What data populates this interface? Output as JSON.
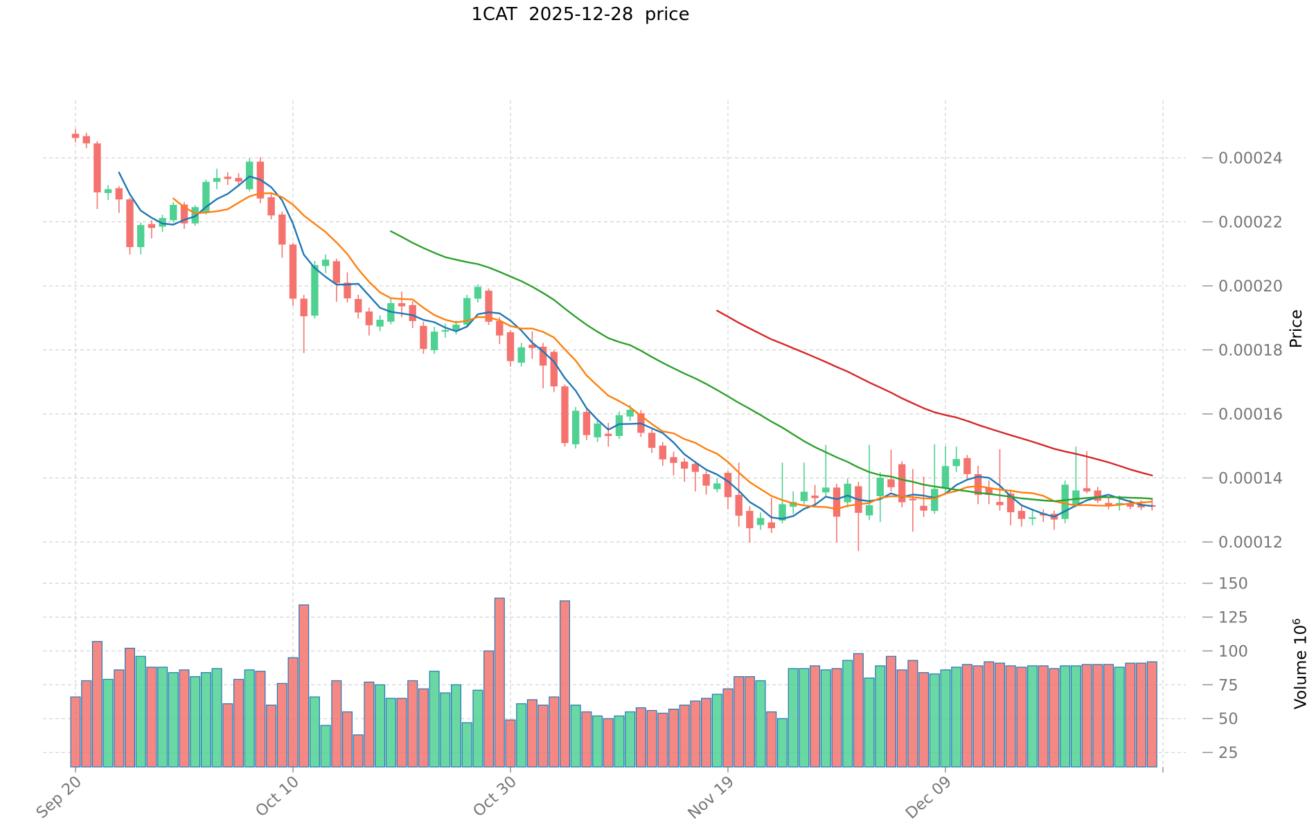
{
  "title": "1CAT  2025-12-28  price",
  "axes": {
    "price_label": "Price",
    "volume_label": {
      "base": "Volume 10",
      "sup": "6"
    },
    "price_ticks": [
      {
        "value": 2.4,
        "label": "0.00024"
      },
      {
        "value": 2.2,
        "label": "0.00022"
      },
      {
        "value": 2.0,
        "label": "0.00020"
      },
      {
        "value": 1.8,
        "label": "0.00018"
      },
      {
        "value": 1.6,
        "label": "0.00016"
      },
      {
        "value": 1.4,
        "label": "0.00014"
      },
      {
        "value": 1.2,
        "label": "0.00012"
      }
    ],
    "volume_ticks": [
      {
        "value": 150,
        "label": "150"
      },
      {
        "value": 125,
        "label": "125"
      },
      {
        "value": 100,
        "label": "100"
      },
      {
        "value": 75,
        "label": "75"
      },
      {
        "value": 50,
        "label": "50"
      },
      {
        "value": 25,
        "label": "25"
      }
    ],
    "x_ticks": [
      {
        "day": 0,
        "label": "Sep 20"
      },
      {
        "day": 20,
        "label": "Oct 10"
      },
      {
        "day": 40,
        "label": "Oct 30"
      },
      {
        "day": 60,
        "label": "Nov 19"
      },
      {
        "day": 80,
        "label": "Dec 09"
      }
    ],
    "x_gridline_days": [
      0,
      20,
      40,
      60,
      80,
      100
    ]
  },
  "colors": {
    "up": "#4fd192",
    "down": "#f4736f",
    "volume_edge": "#2077b4",
    "grid": "#c9c9c9",
    "tick_text": "#767676",
    "mav": [
      "#1f77b4",
      "#ff7f0e",
      "#2ca02c",
      "#d62728"
    ]
  },
  "chart_data": {
    "type": "candlestick+volume",
    "start_date": "2025-09-20",
    "end_date": "2025-12-28",
    "n_days": 100,
    "price_unit": "1e-4",
    "volume_unit": "1e6",
    "price_ylim": [
      1.15,
      2.58
    ],
    "volume_ylim": [
      15,
      165
    ],
    "grid": "dashed",
    "mav_windows": [
      5,
      10,
      30,
      60
    ],
    "ohlc": [
      [
        2.475,
        2.49,
        2.448,
        2.462
      ],
      [
        2.468,
        2.478,
        2.43,
        2.445
      ],
      [
        2.445,
        2.452,
        2.24,
        2.292
      ],
      [
        2.29,
        2.315,
        2.268,
        2.302
      ],
      [
        2.305,
        2.312,
        2.228,
        2.27
      ],
      [
        2.27,
        2.275,
        2.098,
        2.121
      ],
      [
        2.121,
        2.198,
        2.098,
        2.19
      ],
      [
        2.193,
        2.205,
        2.148,
        2.181
      ],
      [
        2.185,
        2.222,
        2.168,
        2.212
      ],
      [
        2.205,
        2.262,
        2.198,
        2.253
      ],
      [
        2.254,
        2.262,
        2.178,
        2.195
      ],
      [
        2.195,
        2.252,
        2.188,
        2.246
      ],
      [
        2.23,
        2.332,
        2.222,
        2.325
      ],
      [
        2.325,
        2.366,
        2.302,
        2.337
      ],
      [
        2.341,
        2.355,
        2.315,
        2.334
      ],
      [
        2.337,
        2.352,
        2.31,
        2.326
      ],
      [
        2.302,
        2.398,
        2.295,
        2.388
      ],
      [
        2.388,
        2.402,
        2.258,
        2.273
      ],
      [
        2.277,
        2.292,
        2.208,
        2.22
      ],
      [
        2.223,
        2.232,
        2.088,
        2.129
      ],
      [
        2.129,
        2.135,
        1.938,
        1.96
      ],
      [
        1.96,
        1.972,
        1.79,
        1.905
      ],
      [
        1.907,
        2.078,
        1.898,
        2.065
      ],
      [
        2.062,
        2.098,
        2.04,
        2.082
      ],
      [
        2.077,
        2.085,
        1.95,
        2.009
      ],
      [
        2.01,
        2.042,
        1.948,
        1.961
      ],
      [
        1.959,
        1.972,
        1.898,
        1.917
      ],
      [
        1.92,
        1.932,
        1.845,
        1.877
      ],
      [
        1.873,
        1.908,
        1.858,
        1.894
      ],
      [
        1.888,
        1.962,
        1.88,
        1.946
      ],
      [
        1.946,
        1.982,
        1.902,
        1.936
      ],
      [
        1.94,
        1.952,
        1.868,
        1.89
      ],
      [
        1.875,
        1.888,
        1.788,
        1.803
      ],
      [
        1.799,
        1.872,
        1.788,
        1.857
      ],
      [
        1.857,
        1.882,
        1.838,
        1.862
      ],
      [
        1.862,
        1.892,
        1.848,
        1.879
      ],
      [
        1.879,
        1.972,
        1.87,
        1.962
      ],
      [
        1.96,
        2.005,
        1.948,
        1.997
      ],
      [
        1.985,
        1.992,
        1.878,
        1.888
      ],
      [
        1.89,
        1.902,
        1.818,
        1.845
      ],
      [
        1.855,
        1.862,
        1.748,
        1.765
      ],
      [
        1.76,
        1.822,
        1.748,
        1.808
      ],
      [
        1.816,
        1.858,
        1.772,
        1.806
      ],
      [
        1.81,
        1.822,
        1.68,
        1.751
      ],
      [
        1.794,
        1.8,
        1.668,
        1.686
      ],
      [
        1.686,
        1.692,
        1.498,
        1.509
      ],
      [
        1.505,
        1.622,
        1.492,
        1.61
      ],
      [
        1.606,
        1.618,
        1.518,
        1.534
      ],
      [
        1.527,
        1.582,
        1.512,
        1.57
      ],
      [
        1.538,
        1.572,
        1.498,
        1.531
      ],
      [
        1.531,
        1.608,
        1.522,
        1.596
      ],
      [
        1.592,
        1.628,
        1.578,
        1.613
      ],
      [
        1.602,
        1.612,
        1.528,
        1.541
      ],
      [
        1.541,
        1.552,
        1.478,
        1.494
      ],
      [
        1.501,
        1.512,
        1.438,
        1.458
      ],
      [
        1.465,
        1.482,
        1.408,
        1.447
      ],
      [
        1.451,
        1.462,
        1.388,
        1.429
      ],
      [
        1.444,
        1.452,
        1.358,
        1.419
      ],
      [
        1.412,
        1.422,
        1.348,
        1.376
      ],
      [
        1.365,
        1.398,
        1.355,
        1.383
      ],
      [
        1.416,
        1.422,
        1.302,
        1.34
      ],
      [
        1.347,
        1.448,
        1.248,
        1.282
      ],
      [
        1.297,
        1.312,
        1.198,
        1.243
      ],
      [
        1.253,
        1.292,
        1.238,
        1.275
      ],
      [
        1.261,
        1.338,
        1.228,
        1.243
      ],
      [
        1.267,
        1.448,
        1.258,
        1.318
      ],
      [
        1.31,
        1.358,
        1.288,
        1.325
      ],
      [
        1.328,
        1.448,
        1.318,
        1.357
      ],
      [
        1.345,
        1.378,
        1.312,
        1.337
      ],
      [
        1.355,
        1.503,
        1.338,
        1.37
      ],
      [
        1.37,
        1.382,
        1.198,
        1.279
      ],
      [
        1.324,
        1.398,
        1.308,
        1.382
      ],
      [
        1.374,
        1.388,
        1.172,
        1.291
      ],
      [
        1.283,
        1.503,
        1.268,
        1.315
      ],
      [
        1.343,
        1.418,
        1.262,
        1.401
      ],
      [
        1.396,
        1.488,
        1.358,
        1.371
      ],
      [
        1.443,
        1.452,
        1.308,
        1.324
      ],
      [
        1.335,
        1.428,
        1.232,
        1.33
      ],
      [
        1.313,
        1.404,
        1.278,
        1.298
      ],
      [
        1.297,
        1.505,
        1.288,
        1.366
      ],
      [
        1.369,
        1.499,
        1.352,
        1.437
      ],
      [
        1.437,
        1.498,
        1.418,
        1.459
      ],
      [
        1.462,
        1.472,
        1.392,
        1.412
      ],
      [
        1.412,
        1.438,
        1.318,
        1.347
      ],
      [
        1.369,
        1.392,
        1.318,
        1.347
      ],
      [
        1.325,
        1.49,
        1.298,
        1.315
      ],
      [
        1.351,
        1.362,
        1.252,
        1.293
      ],
      [
        1.297,
        1.312,
        1.248,
        1.272
      ],
      [
        1.272,
        1.302,
        1.252,
        1.277
      ],
      [
        1.29,
        1.302,
        1.262,
        1.283
      ],
      [
        1.288,
        1.298,
        1.238,
        1.27
      ],
      [
        1.272,
        1.392,
        1.258,
        1.379
      ],
      [
        1.315,
        1.498,
        1.308,
        1.361
      ],
      [
        1.368,
        1.484,
        1.352,
        1.358
      ],
      [
        1.361,
        1.372,
        1.322,
        1.329
      ],
      [
        1.322,
        1.338,
        1.302,
        1.311
      ],
      [
        1.318,
        1.345,
        1.298,
        1.322
      ],
      [
        1.321,
        1.332,
        1.302,
        1.31
      ],
      [
        1.318,
        1.33,
        1.3,
        1.308
      ],
      [
        1.315,
        1.332,
        1.298,
        1.31
      ]
    ],
    "volume": [
      66,
      78,
      107,
      79,
      86,
      102,
      96,
      88,
      88,
      84,
      86,
      81,
      84,
      87,
      61,
      79,
      86,
      85,
      60,
      76,
      95,
      134,
      66,
      45,
      78,
      55,
      38,
      77,
      75,
      65,
      65,
      78,
      72,
      85,
      69,
      75,
      47,
      71,
      100,
      139,
      49,
      61,
      64,
      60,
      66,
      137,
      60,
      55,
      52,
      50,
      52,
      55,
      58,
      56,
      54,
      57,
      60,
      63,
      65,
      68,
      72,
      81,
      81,
      78,
      55,
      50,
      87,
      87,
      89,
      86,
      87,
      93,
      98,
      80,
      89,
      96,
      86,
      93,
      84,
      83,
      86,
      88,
      90,
      89,
      92,
      91,
      89,
      88,
      89,
      89,
      87,
      89,
      89,
      90,
      90,
      90,
      88,
      91,
      91,
      92
    ]
  }
}
